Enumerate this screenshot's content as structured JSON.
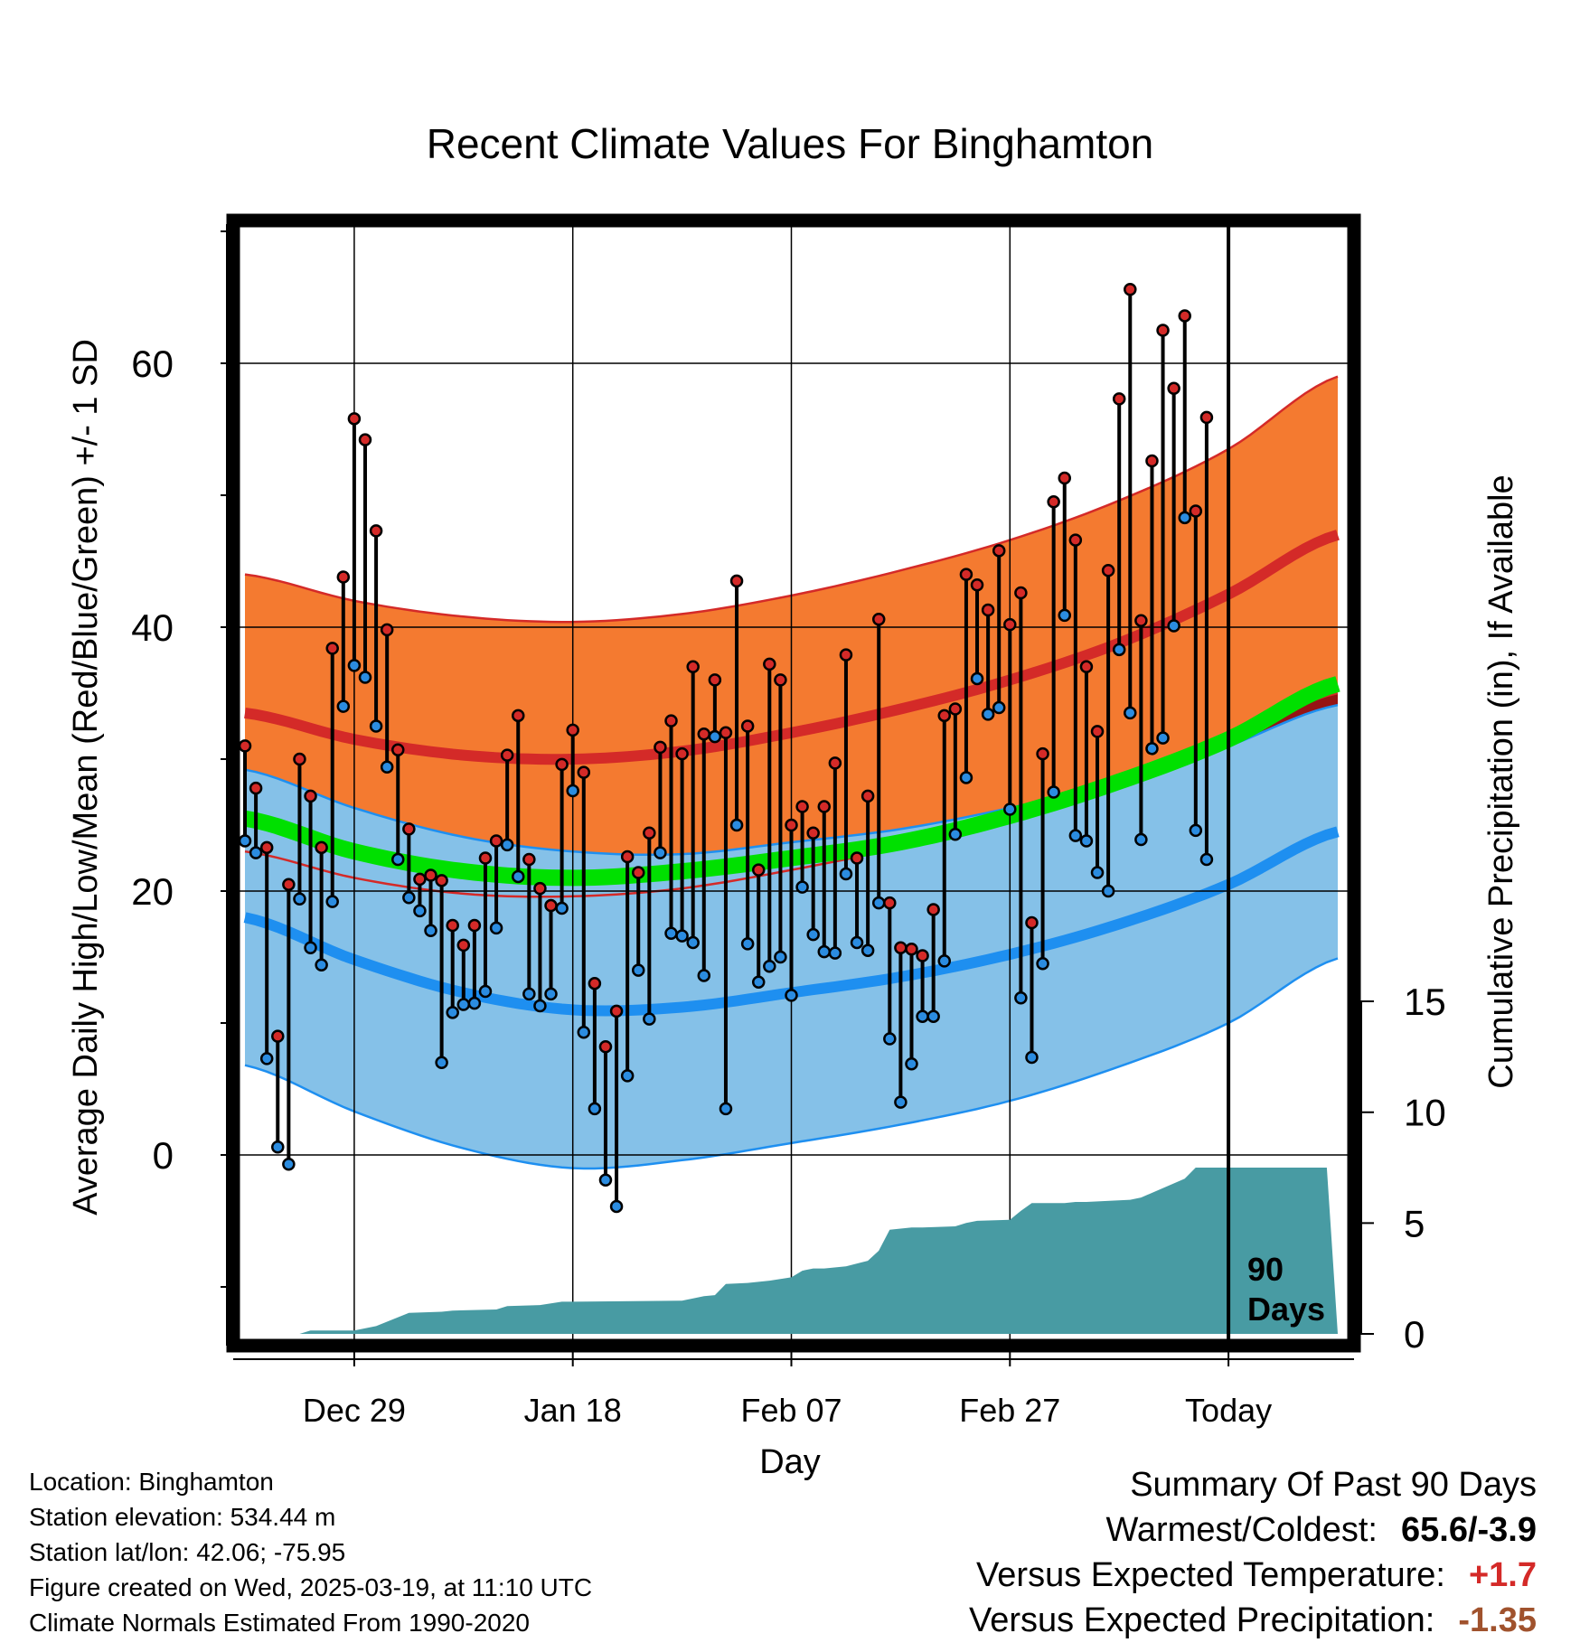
{
  "chart_data": {
    "type": "line",
    "title": "Recent Climate Values For Binghamton",
    "xlabel": "Day",
    "ylabel": "Average Daily High/Low/Mean (Red/Blue/Green) +/- 1 SD",
    "y2label": "Cumulative Precipitation (in), If Available",
    "ylim": [
      -13.5,
      70
    ],
    "y_ticks": [
      "60",
      "40",
      "20",
      "0"
    ],
    "y2_ticks": [
      "15",
      "10",
      "5",
      "0"
    ],
    "x_ticks": [
      "Dec 29",
      "Jan 18",
      "Feb 07",
      "Feb 27",
      "Today"
    ],
    "days_label_line1": "90",
    "days_label_line2": "Days",
    "colors": {
      "normal_high_band": "#f47a30",
      "normal_high_line": "#d42a28",
      "normal_low_band": "#85c1e8",
      "normal_low_line": "#1e8ff0",
      "normal_mean_line": "#00e000",
      "overlap_band": "#961414",
      "precip_fill": "#489ba3",
      "marker_high": "#d42a28",
      "marker_low": "#2b8ce0"
    },
    "normals": {
      "days": [
        -90,
        -80,
        -70,
        -60,
        -50,
        -40,
        -30,
        -20,
        -10,
        0,
        10
      ],
      "high_mean": [
        33.5,
        31.5,
        30.3,
        30.0,
        30.6,
        32.0,
        33.8,
        36.0,
        38.8,
        42.5,
        47.0
      ],
      "high_sd": [
        10.5,
        10.5,
        10.5,
        10.4,
        10.4,
        10.4,
        10.5,
        10.6,
        10.8,
        11.0,
        12.0
      ],
      "low_mean": [
        18.0,
        14.8,
        12.3,
        11.0,
        11.2,
        12.3,
        13.5,
        15.2,
        17.5,
        20.5,
        24.5
      ],
      "low_sd": [
        11.2,
        11.5,
        11.8,
        12.0,
        11.6,
        11.4,
        11.2,
        11.1,
        10.8,
        10.5,
        9.6
      ],
      "mean": [
        25.5,
        23.0,
        21.5,
        21.0,
        21.5,
        22.5,
        23.7,
        25.7,
        28.3,
        31.5,
        35.7
      ]
    },
    "daily": {
      "day_offsets": [
        -90,
        -89,
        -88,
        -87,
        -86,
        -85,
        -84,
        -83,
        -82,
        -81,
        -80,
        -79,
        -78,
        -77,
        -76,
        -75,
        -74,
        -73,
        -72,
        -71,
        -70,
        -69,
        -68,
        -67,
        -66,
        -65,
        -64,
        -63,
        -62,
        -61,
        -60,
        -59,
        -58,
        -57,
        -56,
        -55,
        -54,
        -53,
        -52,
        -51,
        -50,
        -49,
        -48,
        -47,
        -46,
        -45,
        -44,
        -43,
        -42,
        -41,
        -40,
        -39,
        -38,
        -37,
        -36,
        -35,
        -34,
        -33,
        -32,
        -31,
        -30,
        -29,
        -28,
        -27,
        -26,
        -25,
        -24,
        -23,
        -22,
        -21,
        -20,
        -19,
        -18,
        -17,
        -16,
        -15,
        -14,
        -13,
        -12,
        -11,
        -10,
        -9,
        -8,
        -7,
        -6,
        -5,
        -4,
        -3,
        -2,
        -1
      ],
      "high": [
        31,
        27.8,
        23.3,
        9,
        20.5,
        30,
        27.2,
        23.3,
        38.4,
        43.8,
        55.8,
        54.2,
        47.3,
        39.8,
        30.7,
        24.7,
        20.9,
        21.2,
        20.8,
        17.4,
        15.9,
        17.4,
        22.5,
        23.8,
        30.3,
        33.3,
        22.4,
        20.2,
        18.9,
        29.6,
        32.2,
        29,
        13,
        8.2,
        10.9,
        22.6,
        21.4,
        24.4,
        30.9,
        32.9,
        30.4,
        37,
        31.9,
        36,
        32,
        43.5,
        32.5,
        21.6,
        37.2,
        36,
        25,
        26.4,
        24.4,
        26.4,
        29.7,
        37.9,
        22.5,
        27.2,
        40.6,
        19.1,
        15.7,
        15.6,
        15.1,
        18.6,
        33.3,
        33.8,
        44,
        43.2,
        41.3,
        45.8,
        40.2,
        42.6,
        17.6,
        30.4,
        49.5,
        51.3,
        46.6,
        37,
        32.1,
        44.3,
        57.3,
        65.6,
        40.5,
        52.6,
        62.5,
        58.1,
        63.6,
        48.8,
        55.9,
        null
      ],
      "low": [
        23.8,
        22.9,
        7.3,
        0.6,
        -0.7,
        19.4,
        15.7,
        14.4,
        19.2,
        34,
        37.1,
        36.2,
        32.5,
        29.4,
        22.4,
        19.5,
        18.5,
        17,
        7,
        10.8,
        11.4,
        11.5,
        12.4,
        17.2,
        23.5,
        21.1,
        12.2,
        11.3,
        12.2,
        18.7,
        27.6,
        9.3,
        3.5,
        -1.9,
        -3.9,
        6,
        14,
        10.3,
        22.9,
        16.8,
        16.6,
        16.1,
        13.6,
        31.7,
        3.5,
        25,
        16,
        13.1,
        14.3,
        15,
        12.1,
        20.3,
        16.7,
        15.4,
        15.3,
        21.3,
        16.1,
        15.5,
        19.1,
        8.8,
        4,
        6.9,
        10.5,
        10.5,
        14.7,
        24.3,
        28.6,
        36.1,
        33.4,
        33.9,
        26.2,
        11.9,
        7.4,
        14.5,
        27.5,
        40.9,
        24.2,
        23.8,
        21.4,
        20,
        38.3,
        33.5,
        23.9,
        30.8,
        31.6,
        40.1,
        48.3,
        24.6,
        22.4,
        null
      ]
    },
    "precip": {
      "day_offsets": [
        -90,
        -85,
        -84,
        -80,
        -78,
        -77,
        -75,
        -72,
        -71,
        -67,
        -66,
        -63,
        -61,
        -60,
        -50,
        -48,
        -47,
        -46,
        -44,
        -43,
        -42,
        -40,
        -39,
        -38,
        -37,
        -35,
        -33,
        -32,
        -31,
        -30,
        -29,
        -28,
        -25,
        -24,
        -23,
        -20,
        -19,
        -18,
        -15,
        -14,
        -13,
        -9,
        -8,
        -4,
        -3,
        -2,
        -1,
        9
      ],
      "values": [
        0,
        0,
        0.15,
        0.15,
        0.35,
        0.55,
        0.95,
        1.0,
        1.05,
        1.1,
        1.25,
        1.3,
        1.45,
        1.45,
        1.5,
        1.7,
        1.75,
        2.25,
        2.3,
        2.35,
        2.4,
        2.55,
        2.85,
        2.95,
        2.95,
        3.05,
        3.3,
        3.75,
        4.7,
        4.75,
        4.8,
        4.8,
        4.85,
        5.0,
        5.1,
        5.15,
        5.55,
        5.9,
        5.9,
        5.95,
        5.95,
        6.05,
        6.15,
        7.0,
        7.5,
        7.5,
        7.5,
        7.5
      ]
    }
  },
  "footer": {
    "location": "Location: Binghamton",
    "elevation": "Station elevation: 534.44 m",
    "latlon": "Station lat/lon: 42.06; -75.95",
    "created": "Figure created on Wed, 2025-03-19, at 11:10 UTC",
    "normals": "Climate Normals Estimated From 1990-2020"
  },
  "summary": {
    "title": "Summary Of Past 90 Days",
    "warmest_label": "Warmest/Coldest:",
    "warmest_value": "65.6/-3.9",
    "temp_label": "Versus Expected Temperature:",
    "temp_value": "+1.7",
    "temp_color": "#d42a28",
    "precip_label": "Versus Expected Precipitation:",
    "precip_value": "-1.35",
    "precip_color": "#a0522d"
  }
}
